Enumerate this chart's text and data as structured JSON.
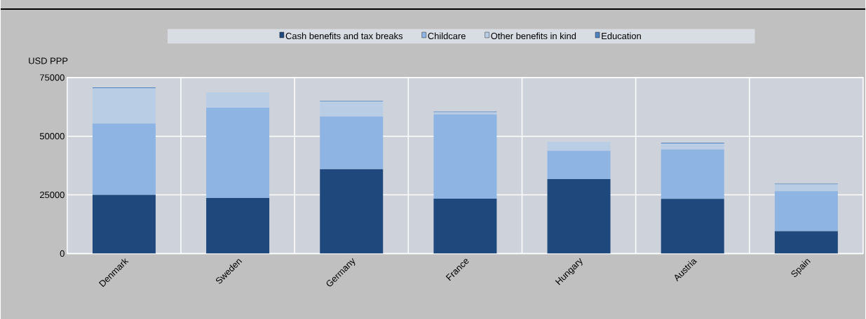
{
  "chart_data": {
    "type": "bar",
    "stacked": true,
    "ylabel": "USD PPP",
    "categories": [
      "Denmark",
      "Sweden",
      "Germany",
      "France",
      "Hungary",
      "Austria",
      "Spain"
    ],
    "series": [
      {
        "name": "Cash benefits and tax breaks",
        "color": "#1f497d",
        "values": [
          25000,
          23700,
          36000,
          23400,
          31700,
          23300,
          9500
        ]
      },
      {
        "name": "Childcare",
        "color": "#8eb4e3",
        "values": [
          30400,
          38400,
          22400,
          35900,
          12100,
          21000,
          17100
        ]
      },
      {
        "name": "Other benefits in kind",
        "color": "#b9cde5",
        "values": [
          15100,
          6600,
          6400,
          900,
          3800,
          2600,
          2900
        ]
      },
      {
        "name": "Education",
        "color": "#4f81bd",
        "values": [
          300,
          0,
          200,
          300,
          0,
          300,
          300
        ]
      }
    ],
    "ylim": [
      0,
      75000
    ],
    "yticks": [
      0,
      25000,
      50000,
      75000
    ],
    "grid": true,
    "legend": "top"
  }
}
